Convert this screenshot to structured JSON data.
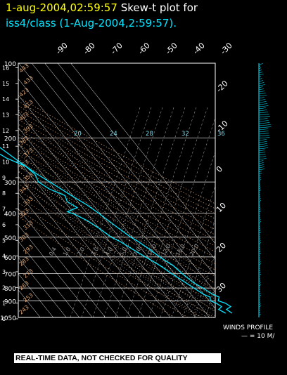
{
  "header": {
    "date_label": "1-aug-2004,02:59:57",
    "title_suffix": "Skew-t plot for",
    "subtitle": "iss4/class (1-Aug-2004,2:59:57)."
  },
  "footer": {
    "quality_note": "REAL-TIME DATA, NOT CHECKED FOR QUALITY"
  },
  "winds_panel": {
    "label": "WINDS PROFILE",
    "scale": "— = 10 M/"
  },
  "colors": {
    "background": "#000000",
    "grid": "#ffffff",
    "trace": "#00e5ff",
    "dry_adiabat": "#d8a070",
    "title_date": "#ffff00"
  },
  "chart_data": {
    "type": "line",
    "title": "Skew-t plot for iss4/class (1-Aug-2004,2:59:57).",
    "xlabel": "",
    "ylabel": "",
    "pressure_ticks": [
      100,
      200,
      300,
      400,
      500,
      600,
      700,
      800,
      900,
      1050
    ],
    "height_ticks": [
      0,
      1,
      2,
      3,
      4,
      5,
      6,
      7,
      8,
      9,
      10,
      11,
      12,
      13,
      14,
      15,
      16
    ],
    "temp_ticks_top": [
      -90,
      -80,
      -70,
      -60,
      -50,
      -40,
      -30
    ],
    "temp_ticks_right": [
      -20,
      -10,
      0,
      10,
      20,
      30
    ],
    "mixing_ratio_labels": [
      "20",
      "24",
      "28",
      "32",
      "36"
    ],
    "theta_labels": [
      "243",
      "253",
      "263",
      "273",
      "283",
      "293",
      "303",
      "313",
      "323",
      "333",
      "343",
      "353",
      "363",
      "373",
      "383",
      "393",
      "403",
      "413",
      "423",
      "433",
      "443",
      "453"
    ],
    "sat_adiabat_labels": [
      "0.4",
      "1.0",
      "2.0",
      "3.0",
      "4.0",
      "5.0",
      "7.0",
      "10.0",
      "12.0",
      "16.0",
      "20.0"
    ],
    "series": [
      {
        "role": "temperature",
        "points": [
          [
            1010,
            20
          ],
          [
            975,
            18
          ],
          [
            950,
            23
          ],
          [
            920,
            21
          ],
          [
            900,
            17
          ],
          [
            870,
            20
          ],
          [
            850,
            17
          ],
          [
            800,
            13
          ],
          [
            760,
            9
          ],
          [
            700,
            6
          ],
          [
            650,
            4
          ],
          [
            600,
            -1
          ],
          [
            560,
            -4
          ],
          [
            520,
            -8
          ],
          [
            500,
            -11
          ],
          [
            460,
            -15
          ],
          [
            420,
            -19
          ],
          [
            400,
            -21
          ],
          [
            370,
            -25
          ],
          [
            340,
            -31
          ],
          [
            310,
            -37
          ],
          [
            280,
            -44
          ],
          [
            250,
            -50
          ],
          [
            220,
            -56
          ],
          [
            200,
            -60
          ],
          [
            180,
            -64
          ],
          [
            160,
            -66
          ],
          [
            140,
            -70
          ],
          [
            125,
            -73
          ],
          [
            115,
            -72
          ],
          [
            105,
            -66
          ],
          [
            100,
            -62
          ]
        ]
      },
      {
        "role": "dewpoint",
        "points": [
          [
            1010,
            15
          ],
          [
            975,
            12
          ],
          [
            950,
            16
          ],
          [
            920,
            14
          ],
          [
            900,
            11
          ],
          [
            870,
            13
          ],
          [
            850,
            10
          ],
          [
            800,
            6
          ],
          [
            760,
            3
          ],
          [
            700,
            -2
          ],
          [
            650,
            -6
          ],
          [
            600,
            -12
          ],
          [
            560,
            -17
          ],
          [
            520,
            -22
          ],
          [
            500,
            -26
          ],
          [
            460,
            -30
          ],
          [
            430,
            -34
          ],
          [
            405,
            -40
          ],
          [
            395,
            -44
          ],
          [
            380,
            -34
          ],
          [
            360,
            -38
          ],
          [
            340,
            -36
          ],
          [
            320,
            -44
          ],
          [
            300,
            -48
          ],
          [
            280,
            -46
          ],
          [
            260,
            -48
          ],
          [
            240,
            -58
          ],
          [
            220,
            -64
          ],
          [
            200,
            -68
          ],
          [
            180,
            -71
          ],
          [
            160,
            -74
          ],
          [
            140,
            -78
          ],
          [
            125,
            -81
          ],
          [
            115,
            -80
          ],
          [
            105,
            -74
          ],
          [
            100,
            -70
          ]
        ]
      }
    ]
  }
}
